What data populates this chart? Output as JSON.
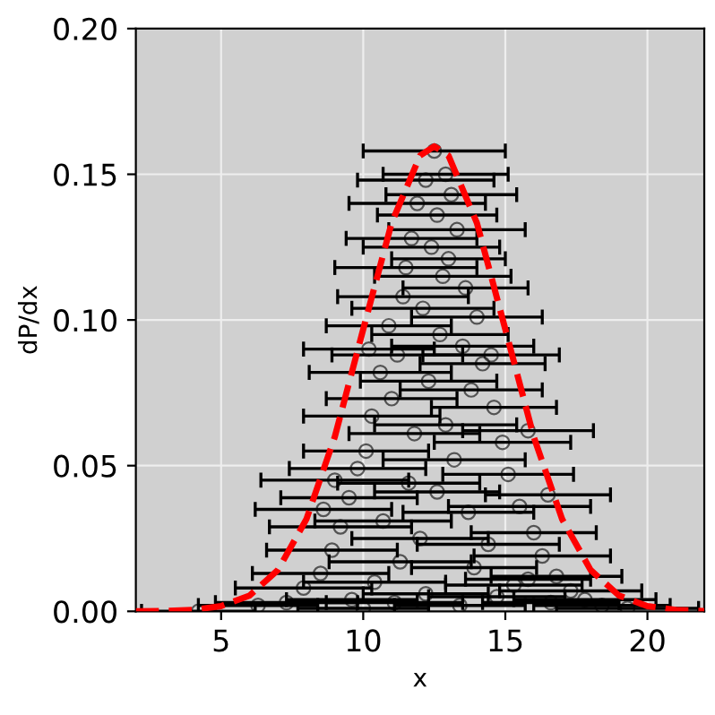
{
  "chart_data": {
    "type": "scatter",
    "xlabel": "x",
    "ylabel": "dP/dx",
    "xlim": [
      2,
      22
    ],
    "ylim": [
      0,
      0.2
    ],
    "xticks": [
      5,
      10,
      15,
      20
    ],
    "yticks": [
      {
        "value": 0,
        "label": "0.00"
      },
      {
        "value": 0.05,
        "label": "0.05"
      },
      {
        "value": 0.1,
        "label": "0.10"
      },
      {
        "value": 0.15,
        "label": "0.15"
      },
      {
        "value": 0.2,
        "label": "0.20"
      }
    ],
    "grid": true,
    "series": [
      {
        "marker": "circle",
        "color": "#000000",
        "x": [
          12.5,
          12.9,
          12.2,
          13.1,
          11.9,
          12.6,
          13.3,
          11.7,
          12.4,
          13.0,
          11.5,
          12.8,
          13.6,
          11.4,
          12.1,
          14.0,
          10.9,
          12.7,
          13.5,
          11.2,
          14.2,
          10.6,
          12.3,
          13.8,
          11.0,
          14.6,
          10.3,
          12.9,
          11.8,
          14.9,
          10.1,
          13.2,
          9.8,
          15.1,
          11.6,
          12.6,
          9.5,
          15.5,
          13.7,
          10.7,
          9.2,
          16.0,
          12.0,
          14.4,
          8.9,
          16.3,
          11.3,
          13.9,
          8.5,
          16.8,
          10.4,
          15.3,
          7.9,
          17.3,
          12.2,
          14.7,
          9.6,
          17.8,
          7.3,
          11.1,
          18.4,
          13.4,
          6.3,
          15.8,
          4.2,
          19.3,
          10.0,
          16.6,
          9.0,
          8.6,
          16.5,
          15.8,
          14.5,
          10.2
        ],
        "values": [
          0.158,
          0.15,
          0.148,
          0.143,
          0.14,
          0.136,
          0.131,
          0.128,
          0.125,
          0.121,
          0.118,
          0.115,
          0.111,
          0.108,
          0.104,
          0.101,
          0.098,
          0.095,
          0.091,
          0.088,
          0.085,
          0.082,
          0.079,
          0.076,
          0.073,
          0.07,
          0.067,
          0.064,
          0.061,
          0.058,
          0.055,
          0.052,
          0.049,
          0.047,
          0.044,
          0.041,
          0.039,
          0.036,
          0.034,
          0.031,
          0.029,
          0.027,
          0.025,
          0.023,
          0.021,
          0.019,
          0.017,
          0.015,
          0.013,
          0.012,
          0.01,
          0.009,
          0.008,
          0.007,
          0.006,
          0.005,
          0.004,
          0.004,
          0.003,
          0.003,
          0.002,
          0.002,
          0.002,
          0.011,
          0.0,
          0.001,
          0.001,
          0.003,
          0.045,
          0.035,
          0.04,
          0.062,
          0.088,
          0.09
        ],
        "xerrors": [
          2.5,
          2.2,
          2.4,
          2.3,
          2.4,
          2.1,
          2.4,
          2.3,
          2.4,
          2.0,
          2.5,
          2.4,
          2.2,
          2.3,
          2.5,
          2.3,
          2.2,
          2.4,
          2.5,
          2.3,
          2.2,
          2.5,
          2.4,
          2.5,
          2.3,
          2.2,
          2.4,
          2.5,
          2.3,
          2.4,
          2.2,
          2.5,
          2.4,
          2.3,
          2.5,
          2.2,
          2.4,
          2.5,
          2.3,
          2.4,
          2.5,
          2.2,
          2.4,
          2.5,
          2.3,
          2.4,
          2.5,
          2.2,
          2.4,
          2.3,
          2.5,
          2.4,
          2.4,
          2.5,
          2.2,
          2.4,
          2.3,
          2.5,
          2.5,
          2.4,
          2.4,
          2.3,
          2.1,
          2.2,
          2.0,
          2.5,
          2.3,
          2.4,
          2.6,
          2.4,
          2.2,
          2.3,
          2.4,
          2.3
        ]
      },
      {
        "type": "line",
        "color": "#ff0000",
        "line_style": "dashed",
        "x": [
          2,
          3,
          4,
          5,
          6,
          7,
          8,
          9,
          10,
          11,
          12,
          12.5,
          13,
          14,
          15,
          16,
          17,
          18,
          19,
          20,
          21,
          22
        ],
        "values": [
          0.0,
          0.0001,
          0.0005,
          0.0018,
          0.0054,
          0.0142,
          0.0316,
          0.0599,
          0.0968,
          0.1333,
          0.1564,
          0.1596,
          0.1564,
          0.1333,
          0.0968,
          0.0599,
          0.0316,
          0.0142,
          0.0054,
          0.0018,
          0.0005,
          0.0001
        ]
      }
    ]
  }
}
